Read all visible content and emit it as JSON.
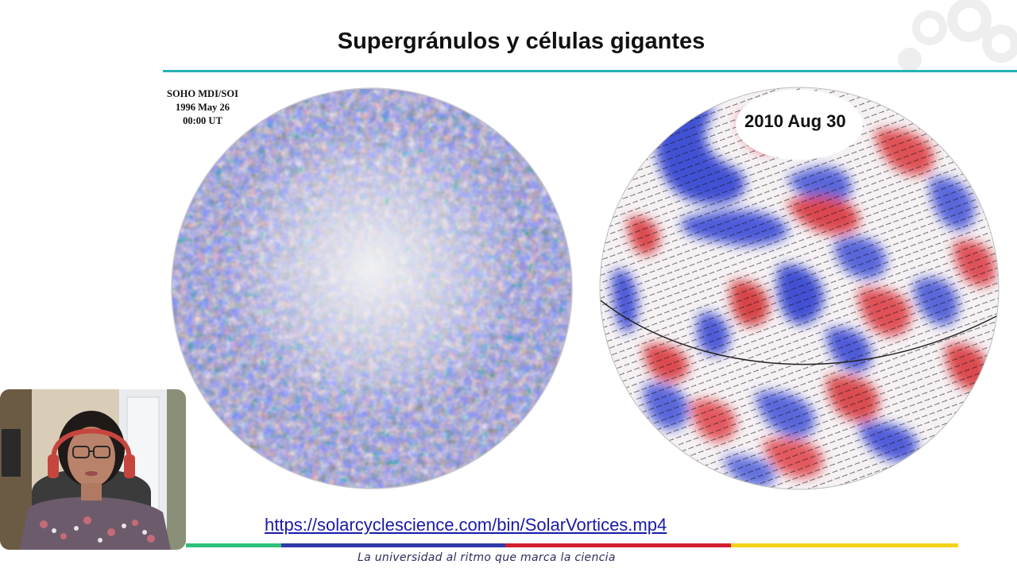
{
  "slide": {
    "title": "Supergránulos y células gigantes",
    "left_caption": [
      "SOHO MDI/SOI",
      "1996 May 26",
      "00:00 UT"
    ],
    "right_date": "2010 Aug 30",
    "link_text": "https://solarcyclescience.com/bin/SolarVortices.mp4",
    "tagline": "La universidad al ritmo que marca la ciencia"
  },
  "colors": {
    "accent_rule": "#27b3b3",
    "link": "#1a1aa8",
    "footer_bars": [
      "#2fbf7a",
      "#2f3aa8",
      "#d21f2f",
      "#f3d21a"
    ]
  },
  "icons": [
    "university-logo-watermark",
    "webcam-presenter-video"
  ]
}
